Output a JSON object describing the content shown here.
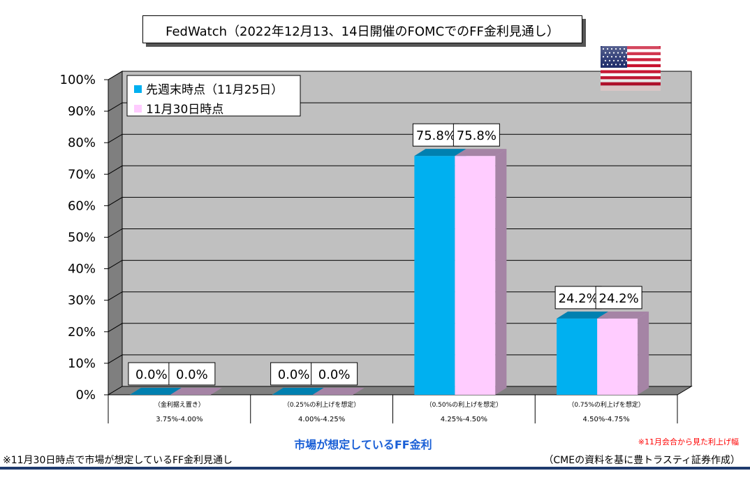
{
  "title": "FedWatch（2022年12月13、14日開催のFOMCでのFF金利見通し）",
  "x_axis_title": "市場が想定しているFF金利",
  "note_red": "※11月会合から見た利上げ幅",
  "note_left": "※11月30日時点で市場が想定しているFF金利見通し",
  "note_right": "（CMEの資料を基に豊トラスティ証券作成）",
  "flag_icon": "us-flag-icon",
  "colors": {
    "series1": "#00b0f0",
    "series1_dark": "#0080b0",
    "series2": "#ffccff",
    "series2_dark": "#a584a5",
    "wall": "#c0c0c0",
    "floor": "#808080",
    "title_blue": "#1a5fd6"
  },
  "chart_data": {
    "type": "bar",
    "title": "FedWatch（2022年12月13、14日開催のFOMCでのFF金利見通し）",
    "xlabel": "市場が想定しているFF金利",
    "ylabel": "",
    "ylim": [
      0,
      100
    ],
    "yticks": [
      "0%",
      "10%",
      "20%",
      "30%",
      "40%",
      "50%",
      "60%",
      "70%",
      "80%",
      "90%",
      "100%"
    ],
    "categories": [
      {
        "note": "（金利据え置き）",
        "range": "3.75%-4.00%"
      },
      {
        "note": "（0.25%の利上げを想定）",
        "range": "4.00%-4.25%"
      },
      {
        "note": "（0.50%の利上げを想定）",
        "range": "4.25%-4.50%"
      },
      {
        "note": "（0.75%の利上げを想定）",
        "range": "4.50%-4.75%"
      }
    ],
    "series": [
      {
        "name": "先週末時点（11月25日）",
        "values": [
          0.0,
          0.0,
          75.8,
          24.2
        ],
        "labels": [
          "0.0%",
          "0.0%",
          "75.8%",
          "24.2%"
        ]
      },
      {
        "name": "11月30日時点",
        "values": [
          0.0,
          0.0,
          75.8,
          24.2
        ],
        "labels": [
          "0.0%",
          "0.0%",
          "75.8%",
          "24.2%"
        ]
      }
    ],
    "grid": true,
    "legend_position": "top-left",
    "three_d": true
  }
}
